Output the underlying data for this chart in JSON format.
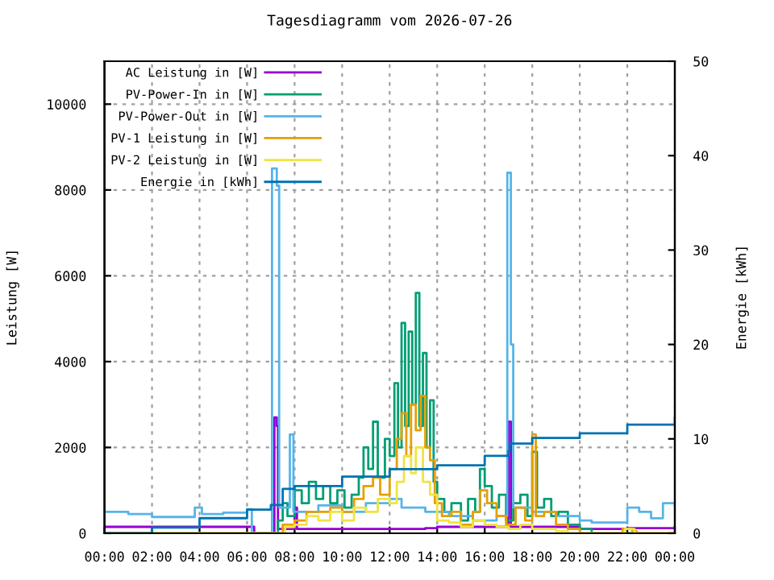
{
  "chart_data": {
    "type": "step",
    "title": "Tagesdiagramm vom 2026-07-26",
    "ylabel": "Leistung [W]",
    "y2label": "Energie [kWh]",
    "xlim": [
      0,
      24
    ],
    "xticks": [
      {
        "value": 0,
        "label": "00:00"
      },
      {
        "value": 2,
        "label": "02:00"
      },
      {
        "value": 4,
        "label": "04:00"
      },
      {
        "value": 6,
        "label": "06:00"
      },
      {
        "value": 8,
        "label": "08:00"
      },
      {
        "value": 10,
        "label": "10:00"
      },
      {
        "value": 12,
        "label": "12:00"
      },
      {
        "value": 14,
        "label": "14:00"
      },
      {
        "value": 16,
        "label": "16:00"
      },
      {
        "value": 18,
        "label": "18:00"
      },
      {
        "value": 20,
        "label": "20:00"
      },
      {
        "value": 22,
        "label": "22:00"
      },
      {
        "value": 24,
        "label": "00:00"
      }
    ],
    "ylim": [
      0,
      11000
    ],
    "yticks": [
      0,
      2000,
      4000,
      6000,
      8000,
      10000
    ],
    "y2lim": [
      0,
      50
    ],
    "y2ticks": [
      0,
      10,
      20,
      30,
      40,
      50
    ],
    "grid": true,
    "legend": "top left",
    "line_style": "solid",
    "marker": "none",
    "series": [
      {
        "name": "AC Leistung in [W]",
        "color": "#9400d3",
        "x": [
          0,
          6.2,
          6.3,
          7.1,
          7.15,
          7.25,
          7.3,
          7.9,
          8.0,
          8.1,
          13.5,
          14,
          16.95,
          17.0,
          17.1,
          20.0,
          22.0,
          24
        ],
        "values": [
          150,
          150,
          0,
          0,
          2700,
          2500,
          100,
          100,
          600,
          100,
          120,
          150,
          150,
          2600,
          150,
          100,
          120,
          150
        ]
      },
      {
        "name": "PV-Power-In in [W]",
        "color": "#009e73",
        "x": [
          0,
          7.0,
          7.3,
          7.5,
          7.7,
          8.0,
          8.3,
          8.6,
          8.9,
          9.2,
          9.5,
          9.8,
          10.1,
          10.4,
          10.7,
          10.9,
          11.1,
          11.3,
          11.5,
          11.8,
          12.0,
          12.2,
          12.35,
          12.5,
          12.65,
          12.8,
          12.95,
          13.1,
          13.25,
          13.4,
          13.55,
          13.7,
          13.85,
          14.0,
          14.3,
          14.6,
          15.0,
          15.3,
          15.6,
          15.8,
          16.0,
          16.3,
          16.6,
          16.9,
          17.2,
          17.5,
          17.8,
          18.0,
          18.2,
          18.5,
          18.8,
          19.1,
          19.5,
          20.0,
          20.5,
          24
        ],
        "values": [
          0,
          0,
          300,
          700,
          400,
          1000,
          700,
          1200,
          800,
          1100,
          700,
          1000,
          600,
          900,
          1300,
          2000,
          1500,
          2600,
          1300,
          2200,
          1800,
          3500,
          2000,
          4900,
          2500,
          4700,
          3000,
          5600,
          2500,
          4200,
          2000,
          3100,
          1200,
          800,
          500,
          700,
          300,
          800,
          500,
          1500,
          1100,
          600,
          900,
          300,
          700,
          900,
          400,
          1900,
          600,
          800,
          400,
          500,
          200,
          100,
          0,
          0
        ]
      },
      {
        "name": "PV-Power-Out in [W]",
        "color": "#56b4e9",
        "x": [
          0,
          1.0,
          2.0,
          3.0,
          3.8,
          4.1,
          5.0,
          6.0,
          6.2,
          7.0,
          7.05,
          7.25,
          7.35,
          7.8,
          7.95,
          9.0,
          10.0,
          11.0,
          12.0,
          12.5,
          13.5,
          14.5,
          15.5,
          16.5,
          16.95,
          17.1,
          17.2,
          18.0,
          19.0,
          20.0,
          20.5,
          21.5,
          22.0,
          22.5,
          23.0,
          23.5,
          24
        ],
        "values": [
          500,
          450,
          380,
          380,
          600,
          450,
          480,
          560,
          0,
          0,
          8500,
          8100,
          600,
          2300,
          500,
          650,
          500,
          700,
          800,
          600,
          500,
          400,
          300,
          400,
          8400,
          4400,
          600,
          500,
          400,
          300,
          250,
          250,
          600,
          500,
          350,
          700,
          650
        ]
      },
      {
        "name": "PV-1 Leistung in [W]",
        "color": "#e69f00",
        "x": [
          0,
          7.3,
          7.5,
          8.0,
          8.5,
          9.0,
          9.5,
          10.0,
          10.5,
          10.9,
          11.3,
          11.6,
          12.0,
          12.3,
          12.5,
          12.7,
          12.9,
          13.1,
          13.3,
          13.5,
          13.7,
          13.9,
          14.2,
          14.6,
          15.0,
          15.5,
          15.8,
          16.1,
          16.5,
          16.9,
          17.3,
          17.7,
          18.0,
          18.15,
          18.5,
          19.0,
          19.5,
          20.0,
          21.6,
          21.8,
          22.2,
          22.4,
          24
        ],
        "values": [
          0,
          0,
          200,
          300,
          500,
          500,
          600,
          500,
          800,
          1100,
          1300,
          900,
          1500,
          2200,
          2800,
          1800,
          3000,
          2400,
          3200,
          2000,
          1700,
          700,
          400,
          500,
          200,
          500,
          1000,
          700,
          400,
          200,
          600,
          300,
          2300,
          400,
          500,
          200,
          100,
          0,
          0,
          100,
          50,
          0,
          0
        ]
      },
      {
        "name": "PV-2 Leistung in [W]",
        "color": "#f0e442",
        "x": [
          0,
          7.3,
          7.6,
          8.0,
          8.5,
          9.0,
          9.5,
          10.0,
          10.5,
          11.0,
          11.5,
          12.0,
          12.3,
          12.6,
          12.9,
          13.1,
          13.4,
          13.7,
          14.0,
          14.5,
          15.0,
          15.5,
          16.0,
          16.5,
          17.0,
          17.5,
          18.0,
          19.0,
          19.5,
          21.6,
          21.9,
          22.3,
          24
        ],
        "values": [
          0,
          0,
          150,
          200,
          400,
          300,
          500,
          300,
          600,
          500,
          800,
          700,
          1200,
          1800,
          1400,
          2000,
          1200,
          900,
          300,
          250,
          150,
          300,
          200,
          150,
          100,
          200,
          100,
          50,
          0,
          0,
          100,
          0,
          0
        ]
      },
      {
        "name": "Energie in [kWh]",
        "color": "#0072b2",
        "axis": "y2",
        "x": [
          0,
          2,
          4,
          6,
          7,
          7.5,
          8,
          10,
          12,
          14,
          16,
          17,
          17.05,
          18,
          20,
          22,
          24
        ],
        "values": [
          0,
          0.6,
          1.6,
          2.5,
          3.0,
          4.7,
          5.0,
          6.0,
          6.8,
          7.2,
          8.2,
          8.7,
          9.5,
          10.1,
          10.6,
          11.5,
          12.2
        ]
      }
    ]
  }
}
